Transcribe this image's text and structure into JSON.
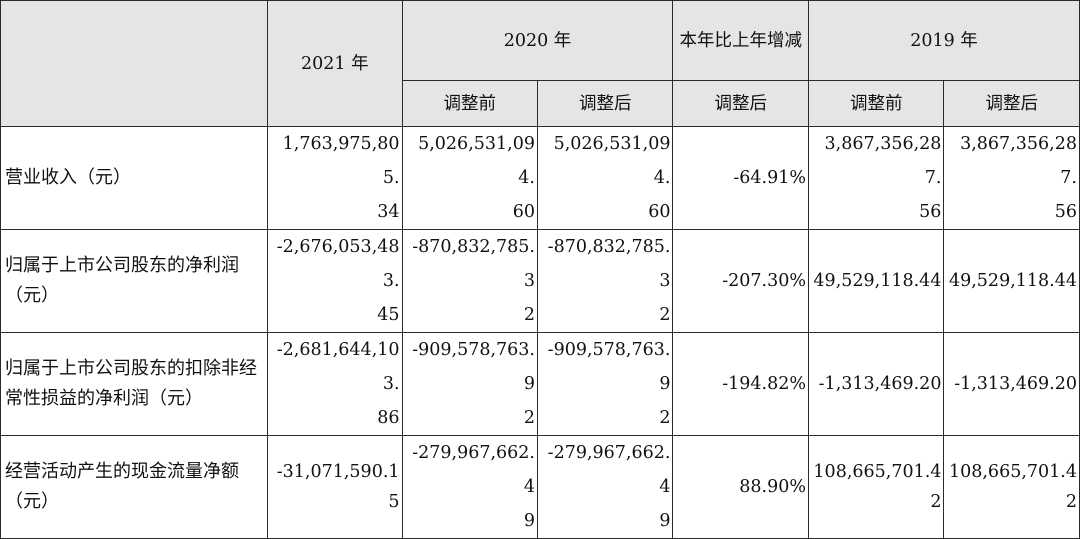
{
  "header": {
    "year_2021": "2021 年",
    "year_2020": "2020 年",
    "change_col": "本年比上年增减",
    "year_2019": "2019 年",
    "before_adj": "调整前",
    "after_adj": "调整后"
  },
  "rows": [
    {
      "label": "营业收入（元）",
      "v2021": [
        "1,763,975,805.",
        "34"
      ],
      "v2020_before": [
        "5,026,531,094.",
        "60"
      ],
      "v2020_after": [
        "5,026,531,094.",
        "60"
      ],
      "change": "-64.91%",
      "v2019_before": [
        "3,867,356,287.",
        "56"
      ],
      "v2019_after": [
        "3,867,356,287.",
        "56"
      ]
    },
    {
      "label": "归属于上市公司股东的净利润（元）",
      "v2021": [
        "-2,676,053,483.",
        "45"
      ],
      "v2020_before": [
        "-870,832,785.3",
        "2"
      ],
      "v2020_after": [
        "-870,832,785.3",
        "2"
      ],
      "change": "-207.30%",
      "v2019_before": "49,529,118.44",
      "v2019_after": "49,529,118.44"
    },
    {
      "label": "归属于上市公司股东的扣除非经常性损益的净利润（元）",
      "v2021": [
        "-2,681,644,103.",
        "86"
      ],
      "v2020_before": [
        "-909,578,763.9",
        "2"
      ],
      "v2020_after": [
        "-909,578,763.9",
        "2"
      ],
      "change": "-194.82%",
      "v2019_before": "-1,313,469.20",
      "v2019_after": "-1,313,469.20"
    },
    {
      "label": "经营活动产生的现金流量净额（元）",
      "v2021": "-31,071,590.15",
      "v2020_before": [
        "-279,967,662.4",
        "9"
      ],
      "v2020_after": [
        "-279,967,662.4",
        "9"
      ],
      "change": "88.90%",
      "v2019_before": "108,665,701.42",
      "v2019_after": "108,665,701.42"
    }
  ]
}
